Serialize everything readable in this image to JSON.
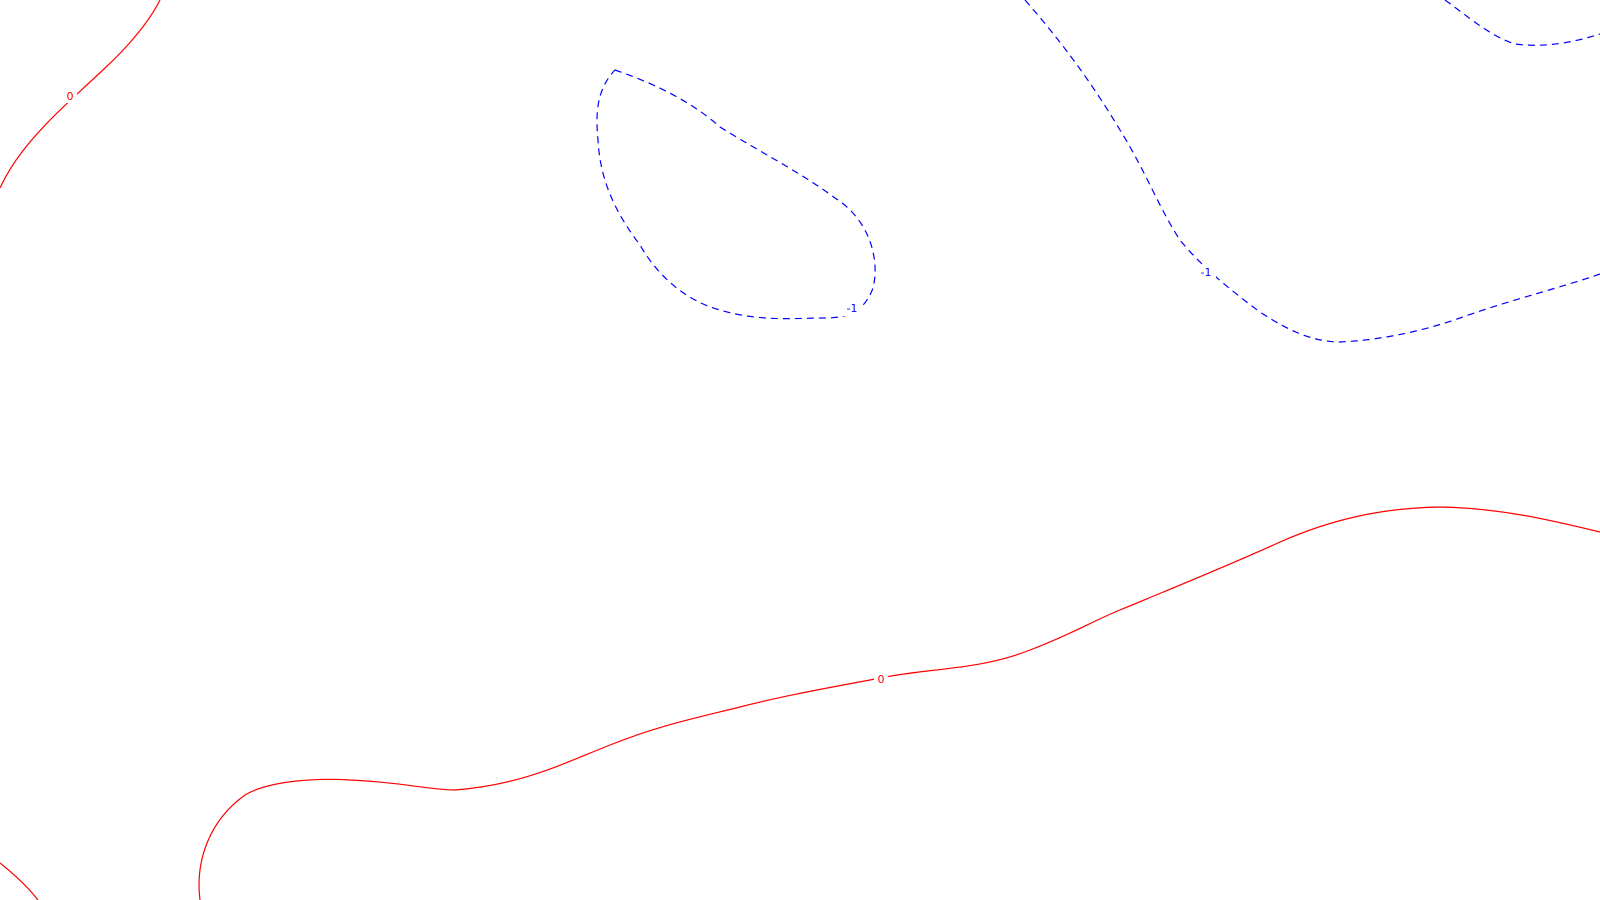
{
  "map": {
    "contours": [
      {
        "level": "0",
        "style": "solid",
        "color": "#ff0000",
        "label": "0"
      },
      {
        "level": "-1",
        "style": "dashed",
        "color": "#0000ff",
        "label": "-1"
      }
    ],
    "labels": {
      "zero_upper_left": "0",
      "zero_center": "0",
      "neg_blob": "-1",
      "neg_right": "-1"
    }
  }
}
